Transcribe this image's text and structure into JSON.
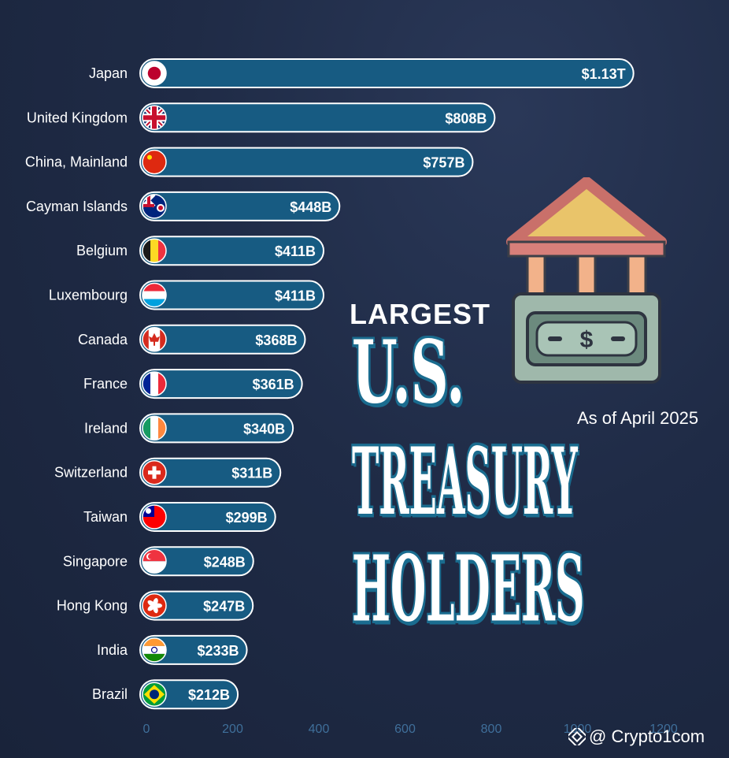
{
  "title": {
    "line1": "LARGEST",
    "line2": "U.S.",
    "line3": "TREASURY",
    "line4": "HOLDERS"
  },
  "subtitle": "As of April 2025",
  "watermark": "@ Crypto1com",
  "icons": {
    "building": "bank-building-icon",
    "money": "dollar-bill-icon",
    "watermark": "binance-logo-icon"
  },
  "colors": {
    "background": "#1e2a44",
    "bar": "#175b82",
    "bar_outline": "#ffffff",
    "axis_ticks": "#3f6f9a"
  },
  "chart_data": {
    "type": "bar",
    "orientation": "horizontal",
    "categories": [
      "Japan",
      "United Kingdom",
      "China, Mainland",
      "Cayman Islands",
      "Belgium",
      "Luxembourg",
      "Canada",
      "France",
      "Ireland",
      "Switzerland",
      "Taiwan",
      "Singapore",
      "Hong Kong",
      "India",
      "Brazil"
    ],
    "values": [
      1130,
      808,
      757,
      448,
      411,
      411,
      368,
      361,
      340,
      311,
      299,
      248,
      247,
      233,
      212
    ],
    "value_labels": [
      "$1.13T",
      "$808B",
      "$757B",
      "$448B",
      "$411B",
      "$411B",
      "$368B",
      "$361B",
      "$340B",
      "$311B",
      "$299B",
      "$248B",
      "$247B",
      "$233B",
      "$212B"
    ],
    "flags": [
      "japan-flag-icon",
      "uk-flag-icon",
      "china-flag-icon",
      "cayman-flag-icon",
      "belgium-flag-icon",
      "luxembourg-flag-icon",
      "canada-flag-icon",
      "france-flag-icon",
      "ireland-flag-icon",
      "switzerland-flag-icon",
      "taiwan-flag-icon",
      "singapore-flag-icon",
      "hongkong-flag-icon",
      "india-flag-icon",
      "brazil-flag-icon"
    ],
    "x_ticks": [
      "0",
      "200",
      "400",
      "600",
      "800",
      "1000",
      "1200"
    ],
    "xlim": [
      0,
      1200
    ],
    "grid": false
  }
}
